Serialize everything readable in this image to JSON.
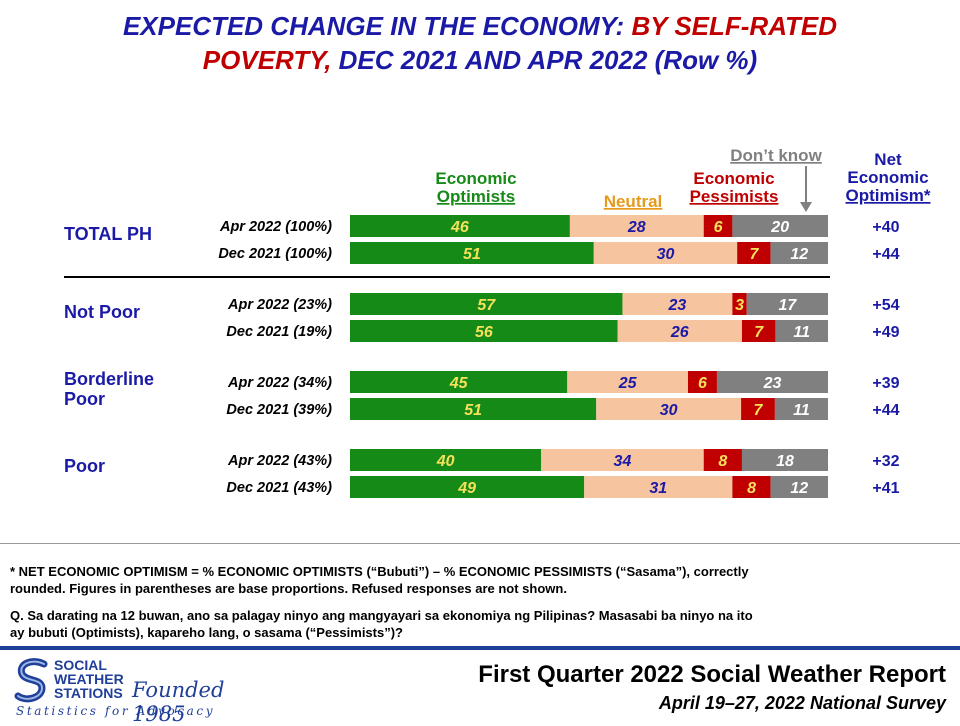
{
  "title": {
    "line1_blue": "EXPECTED CHANGE IN THE ECONOMY:",
    "line1_red": "BY SELF-RATED",
    "line2_red": "POVERTY,",
    "line2_blue": "DEC 2021 AND APR 2022 (Row %)"
  },
  "colors": {
    "optimists": "#168a16",
    "neutral": "#f7c4a0",
    "pessimists": "#c00000",
    "dont_know": "#808080",
    "blue": "#1a1aa6",
    "red": "#c00000",
    "header_green": "#168a16",
    "header_orange": "#e69a1c",
    "header_gray": "#808080",
    "label_optimists": "#f5e15a",
    "label_neutral": "#1a1aa6",
    "label_pessimists": "#f5e15a",
    "label_dont_know": "#ffffff"
  },
  "chart_data": {
    "type": "bar",
    "orientation": "horizontal",
    "stacked": true,
    "series_names": [
      "Economic Optimists",
      "Neutral",
      "Economic Pessimists",
      "Don't know"
    ],
    "headers": {
      "optimists": [
        "Economic",
        "Optimists"
      ],
      "neutral": "Neutral",
      "pessimists": [
        "Economic",
        "Pessimists"
      ],
      "dont_know": "Don’t know",
      "net": [
        "Net",
        "Economic",
        "Optimism*"
      ]
    },
    "groups": [
      {
        "name": [
          "TOTAL PH"
        ],
        "rows": [
          {
            "label": "Apr 2022 (100%)",
            "values": [
              46,
              28,
              6,
              20
            ],
            "net": "+40"
          },
          {
            "label": "Dec 2021 (100%)",
            "values": [
              51,
              30,
              7,
              12
            ],
            "net": "+44"
          }
        ]
      },
      {
        "name": [
          "Not Poor"
        ],
        "rows": [
          {
            "label": "Apr 2022 (23%)",
            "values": [
              57,
              23,
              3,
              17
            ],
            "net": "+54"
          },
          {
            "label": "Dec 2021 (19%)",
            "values": [
              56,
              26,
              7,
              11
            ],
            "net": "+49"
          }
        ]
      },
      {
        "name": [
          "Borderline",
          "Poor"
        ],
        "rows": [
          {
            "label": "Apr 2022 (34%)",
            "values": [
              45,
              25,
              6,
              23
            ],
            "net": "+39"
          },
          {
            "label": "Dec 2021 (39%)",
            "values": [
              51,
              30,
              7,
              11
            ],
            "net": "+44"
          }
        ]
      },
      {
        "name": [
          "Poor"
        ],
        "rows": [
          {
            "label": "Apr 2022 (43%)",
            "values": [
              40,
              34,
              8,
              18
            ],
            "net": "+32"
          },
          {
            "label": "Dec 2021 (43%)",
            "values": [
              49,
              31,
              8,
              12
            ],
            "net": "+41"
          }
        ]
      }
    ]
  },
  "notes": {
    "net_line1": "* NET ECONOMIC OPTIMISM =  % ECONOMIC OPTIMISTS (“Bubuti”) –  % ECONOMIC PESSIMISTS (“Sasama”), correctly",
    "net_line2": "rounded. Figures in parentheses are base proportions.  Refused responses are not shown.",
    "q_line1": "Q. Sa darating na 12 buwan, ano sa palagay ninyo ang mangyayari sa ekonomiya ng Pilipinas? Masasabi ba ninyo na ito",
    "q_line2": "ay bubuti (Optimists),  kapareho lang, o sasama (“Pessimists”)?"
  },
  "logo": {
    "name_line1": "SOCIAL",
    "name_line2": "WEATHER",
    "name_line3": "STATIONS",
    "founded": "Founded 1985",
    "tagline": "Statistics for Advocacy"
  },
  "report": {
    "title": "First Quarter 2022 Social Weather Report",
    "subtitle": "April 19–27, 2022 National Survey"
  }
}
